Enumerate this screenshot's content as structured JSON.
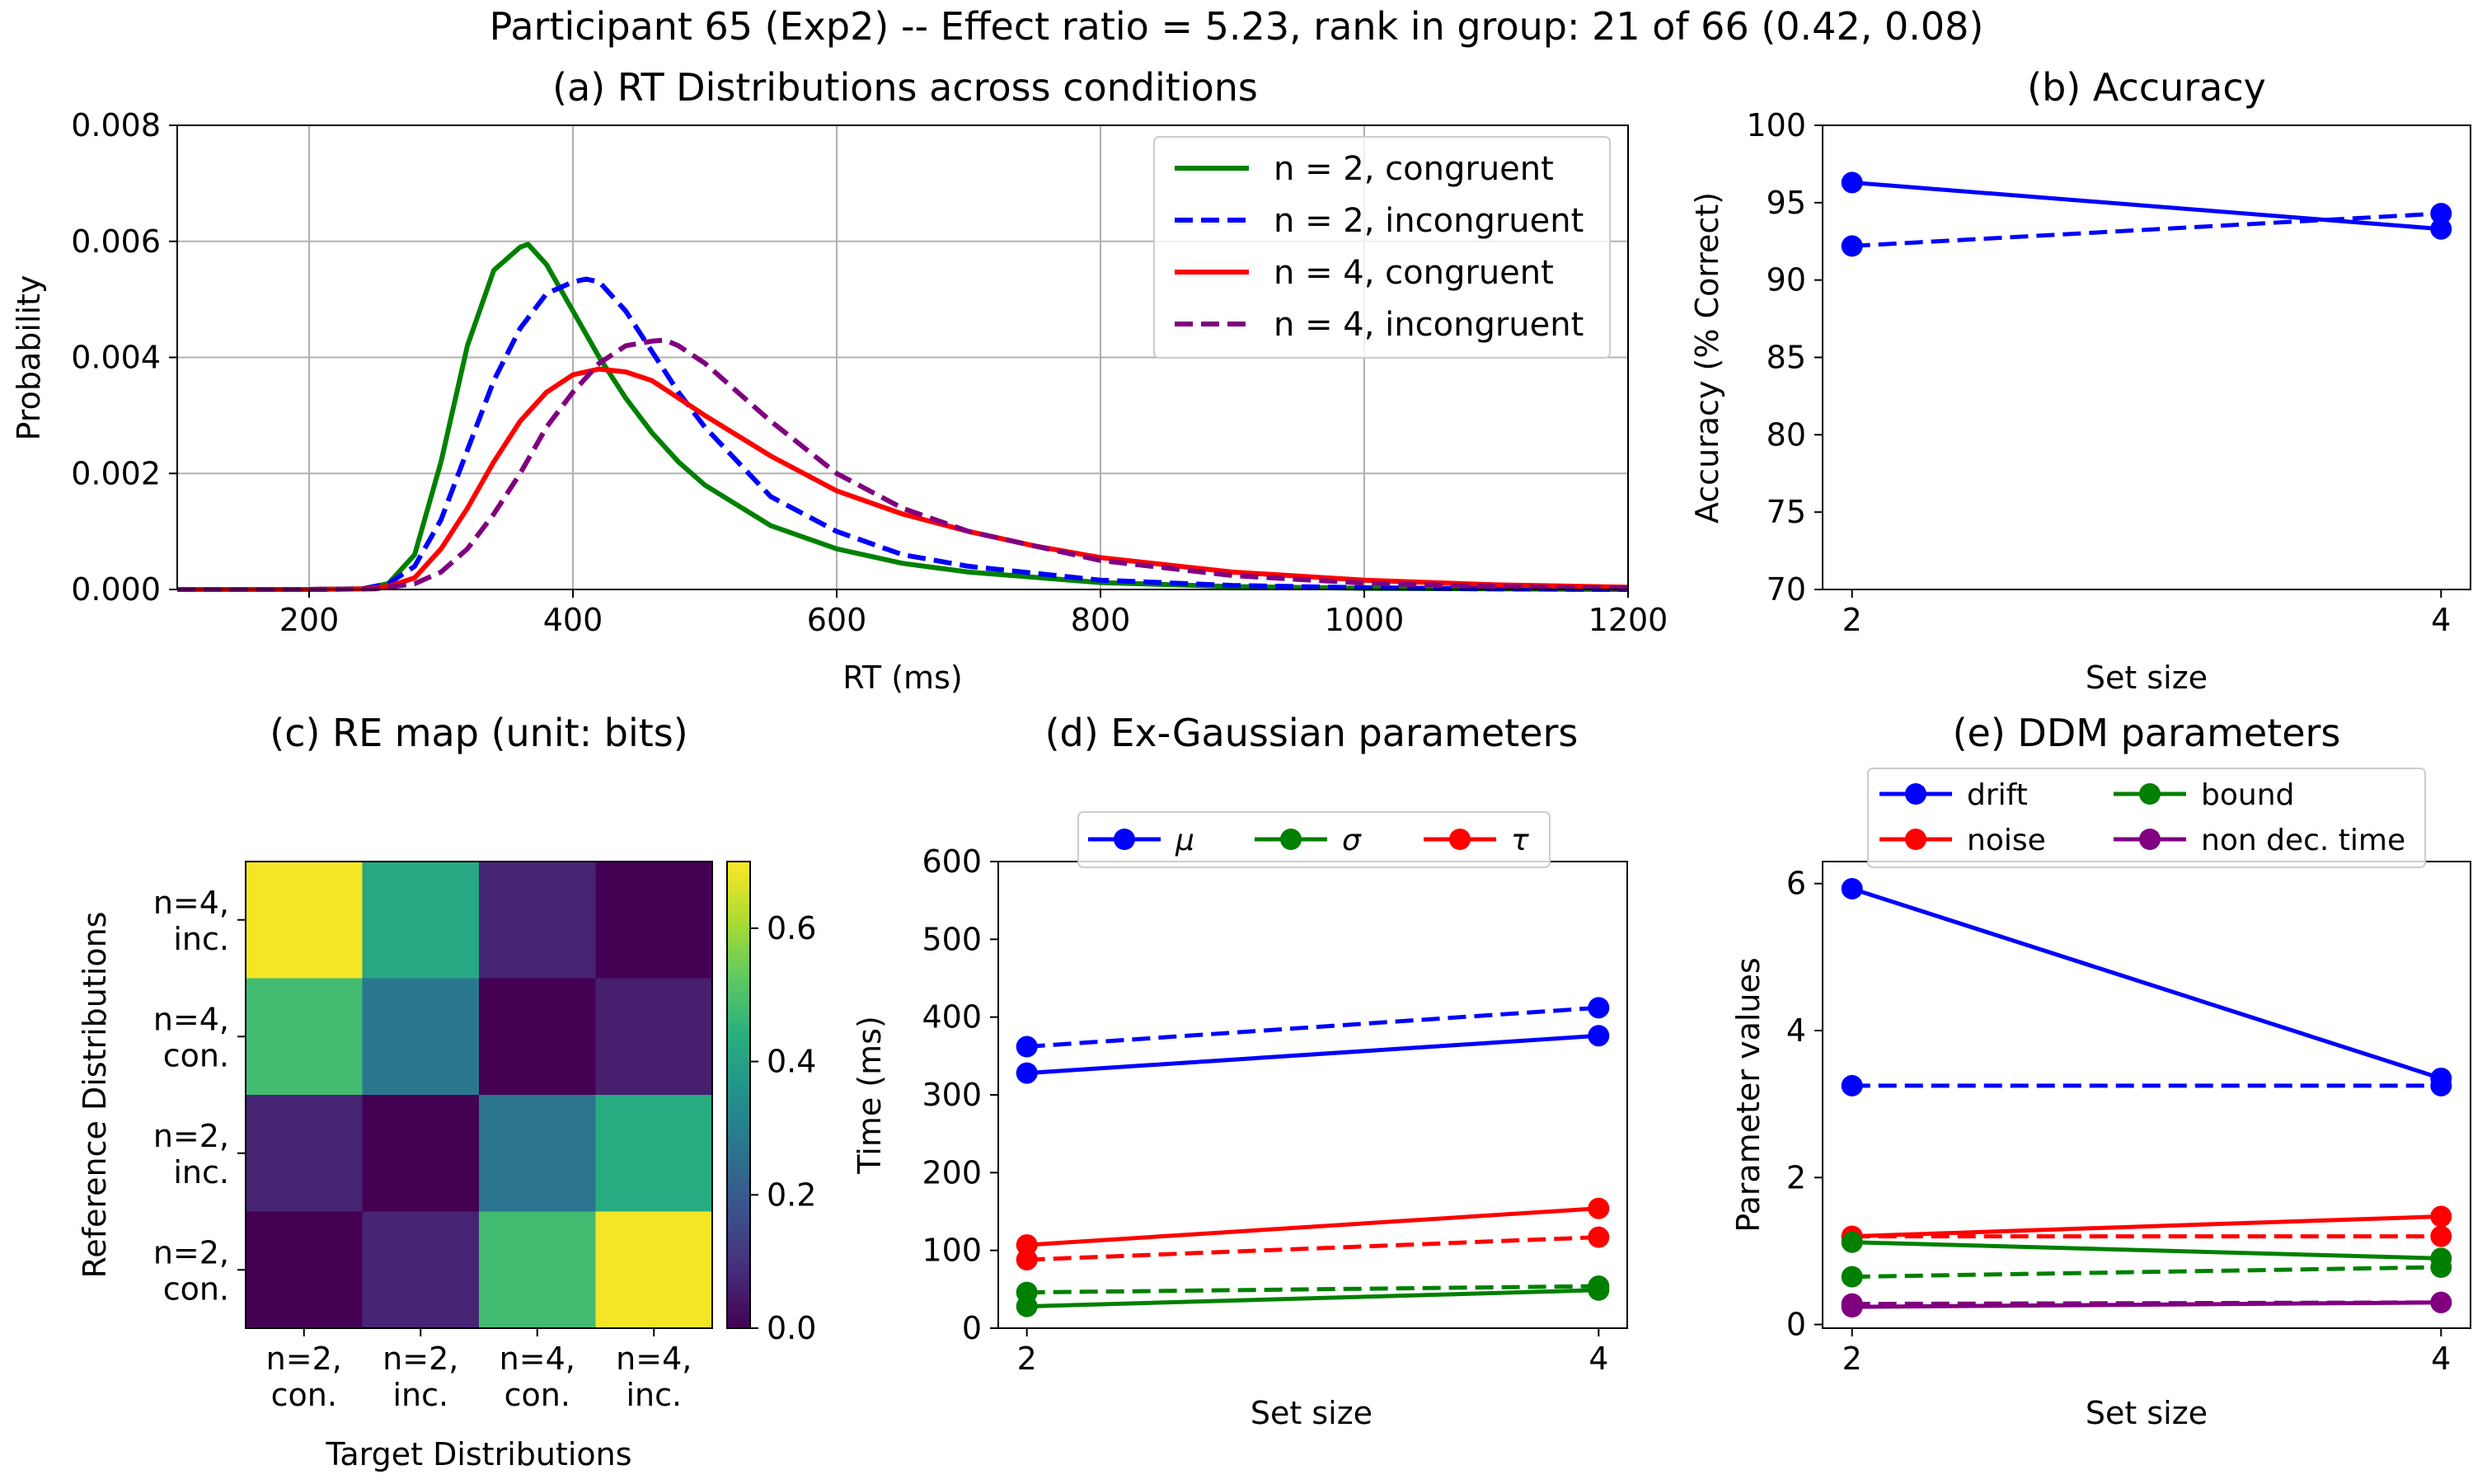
{
  "figure": {
    "suptitle": "Participant 65 (Exp2) -- Effect ratio = 5.23, rank in group: 21 of 66 (0.42, 0.08)"
  },
  "colors": {
    "green": "#008000",
    "blue": "#0000ff",
    "red": "#ff0000",
    "purple": "#800080"
  },
  "chart_data": [
    {
      "id": "a",
      "type": "line",
      "title": "(a) RT Distributions across conditions",
      "xlabel": "RT (ms)",
      "ylabel": "Probability",
      "xlim": [
        100,
        1200
      ],
      "ylim": [
        0,
        0.008
      ],
      "xticks": [
        200,
        400,
        600,
        800,
        1000,
        1200
      ],
      "yticks": [
        "0.000",
        "0.002",
        "0.004",
        "0.006",
        "0.008"
      ],
      "grid": true,
      "legend": "top-right",
      "series": [
        {
          "name": "n = 2, congruent",
          "color": "#008000",
          "dash": "solid",
          "x": [
            100,
            200,
            240,
            260,
            280,
            300,
            320,
            340,
            360,
            366,
            380,
            400,
            420,
            440,
            460,
            480,
            500,
            550,
            600,
            650,
            700,
            800,
            900,
            1000,
            1100,
            1200
          ],
          "y": [
            0,
            0,
            1e-05,
            0.0001,
            0.0006,
            0.0022,
            0.0042,
            0.0055,
            0.0059,
            0.00595,
            0.0056,
            0.0048,
            0.004,
            0.0033,
            0.0027,
            0.0022,
            0.0018,
            0.0011,
            0.0007,
            0.00045,
            0.0003,
            0.00012,
            5e-05,
            2e-05,
            1e-05,
            0
          ]
        },
        {
          "name": "n = 2, incongruent",
          "color": "#0000ff",
          "dash": "dashed",
          "x": [
            100,
            200,
            240,
            260,
            280,
            300,
            320,
            340,
            360,
            380,
            400,
            410,
            420,
            440,
            460,
            480,
            500,
            550,
            600,
            650,
            700,
            800,
            900,
            1000,
            1100,
            1200
          ],
          "y": [
            0,
            0,
            1e-05,
            0.0001,
            0.0004,
            0.0012,
            0.0024,
            0.0036,
            0.0045,
            0.0051,
            0.0053,
            0.00535,
            0.0053,
            0.0048,
            0.0041,
            0.0034,
            0.0028,
            0.0016,
            0.001,
            0.0006,
            0.0004,
            0.00016,
            7e-05,
            3e-05,
            1e-05,
            0
          ]
        },
        {
          "name": "n = 4, congruent",
          "color": "#ff0000",
          "dash": "solid",
          "x": [
            100,
            200,
            240,
            260,
            280,
            300,
            320,
            340,
            360,
            380,
            400,
            420,
            440,
            460,
            480,
            500,
            550,
            600,
            650,
            700,
            750,
            800,
            900,
            1000,
            1100,
            1200
          ],
          "y": [
            0,
            0,
            1e-05,
            5e-05,
            0.0002,
            0.0007,
            0.0014,
            0.0022,
            0.0029,
            0.0034,
            0.0037,
            0.0038,
            0.00375,
            0.0036,
            0.0033,
            0.003,
            0.0023,
            0.0017,
            0.0013,
            0.001,
            0.00075,
            0.00055,
            0.0003,
            0.00016,
            8e-05,
            4e-05
          ]
        },
        {
          "name": "n = 4, incongruent",
          "color": "#800080",
          "dash": "dashed",
          "x": [
            100,
            200,
            250,
            280,
            300,
            320,
            340,
            360,
            380,
            400,
            420,
            440,
            460,
            470,
            480,
            500,
            520,
            550,
            600,
            650,
            700,
            800,
            900,
            1000,
            1100,
            1200
          ],
          "y": [
            0,
            0,
            1e-05,
            0.0001,
            0.0003,
            0.0007,
            0.0013,
            0.002,
            0.0028,
            0.0034,
            0.0039,
            0.0042,
            0.00428,
            0.0043,
            0.0042,
            0.0039,
            0.0035,
            0.0029,
            0.002,
            0.0014,
            0.001,
            0.0005,
            0.00024,
            0.00011,
            5e-05,
            2e-05
          ]
        }
      ]
    },
    {
      "id": "b",
      "type": "line",
      "title": "(b) Accuracy",
      "xlabel": "Set size",
      "ylabel": "Accuracy (% Correct)",
      "xlim": [
        1.9,
        4.1
      ],
      "ylim": [
        70,
        100
      ],
      "xticks": [
        2,
        4
      ],
      "yticks": [
        70,
        75,
        80,
        85,
        90,
        95,
        100
      ],
      "series": [
        {
          "color": "#0000ff",
          "dash": "solid",
          "x": [
            2,
            4
          ],
          "y": [
            96.3,
            93.3
          ]
        },
        {
          "color": "#0000ff",
          "dash": "dashed",
          "x": [
            2,
            4
          ],
          "y": [
            92.2,
            94.3
          ]
        }
      ]
    },
    {
      "id": "c",
      "type": "heatmap",
      "title": "(c) RE map (unit: bits)",
      "xlabel": "Target Distributions",
      "ylabel": "Reference Distributions",
      "xticklabels": [
        [
          "n=2,",
          "con."
        ],
        [
          "n=2,",
          "inc."
        ],
        [
          "n=4,",
          "con."
        ],
        [
          "n=4,",
          "inc."
        ]
      ],
      "yticklabels_top_to_bottom": [
        [
          "n=4,",
          "inc."
        ],
        [
          "n=4,",
          "con."
        ],
        [
          "n=2,",
          "inc."
        ],
        [
          "n=2,",
          "con."
        ]
      ],
      "values_top_to_bottom": [
        [
          0.69,
          0.42,
          0.07,
          0.0
        ],
        [
          0.48,
          0.28,
          0.0,
          0.06
        ],
        [
          0.07,
          0.0,
          0.27,
          0.43
        ],
        [
          0.0,
          0.07,
          0.48,
          0.69
        ]
      ],
      "colorbar": {
        "min": 0.0,
        "max": 0.7,
        "ticks": [
          "0.0",
          "0.2",
          "0.4",
          "0.6"
        ]
      }
    },
    {
      "id": "d",
      "type": "line",
      "title": "(d) Ex-Gaussian parameters",
      "xlabel": "Set size",
      "ylabel": "Time (ms)",
      "xlim": [
        1.9,
        4.1
      ],
      "ylim": [
        0,
        600
      ],
      "xticks": [
        2,
        4
      ],
      "yticks": [
        0,
        100,
        200,
        300,
        400,
        500,
        600
      ],
      "legend": "top-center",
      "legend_entries": [
        {
          "label": "μ",
          "color": "#0000ff"
        },
        {
          "label": "σ",
          "color": "#008000"
        },
        {
          "label": "τ",
          "color": "#ff0000"
        }
      ],
      "series": [
        {
          "color": "#0000ff",
          "dash": "solid",
          "x": [
            2,
            4
          ],
          "y": [
            328,
            376
          ]
        },
        {
          "color": "#0000ff",
          "dash": "dashed",
          "x": [
            2,
            4
          ],
          "y": [
            362,
            412
          ]
        },
        {
          "color": "#ff0000",
          "dash": "solid",
          "x": [
            2,
            4
          ],
          "y": [
            107,
            154
          ]
        },
        {
          "color": "#ff0000",
          "dash": "dashed",
          "x": [
            2,
            4
          ],
          "y": [
            88,
            117
          ]
        },
        {
          "color": "#008000",
          "dash": "solid",
          "x": [
            2,
            4
          ],
          "y": [
            28,
            49
          ]
        },
        {
          "color": "#008000",
          "dash": "dashed",
          "x": [
            2,
            4
          ],
          "y": [
            46,
            54
          ]
        }
      ]
    },
    {
      "id": "e",
      "type": "line",
      "title": "(e) DDM parameters",
      "xlabel": "Set size",
      "ylabel": "Parameter values",
      "xlim": [
        1.9,
        4.1
      ],
      "ylim": [
        -0.05,
        6.3
      ],
      "xticks": [
        2,
        4
      ],
      "yticks": [
        0,
        2,
        4,
        6
      ],
      "legend": "top",
      "legend_entries": [
        {
          "label": "drift",
          "color": "#0000ff"
        },
        {
          "label": "bound",
          "color": "#008000"
        },
        {
          "label": "noise",
          "color": "#ff0000"
        },
        {
          "label": "non dec. time",
          "color": "#800080"
        }
      ],
      "series": [
        {
          "color": "#0000ff",
          "dash": "solid",
          "x": [
            2,
            4
          ],
          "y": [
            5.93,
            3.35
          ]
        },
        {
          "color": "#0000ff",
          "dash": "dashed",
          "x": [
            2,
            4
          ],
          "y": [
            3.25,
            3.25
          ]
        },
        {
          "color": "#ff0000",
          "dash": "solid",
          "x": [
            2,
            4
          ],
          "y": [
            1.2,
            1.47
          ]
        },
        {
          "color": "#ff0000",
          "dash": "dashed",
          "x": [
            2,
            4
          ],
          "y": [
            1.2,
            1.2
          ]
        },
        {
          "color": "#008000",
          "dash": "solid",
          "x": [
            2,
            4
          ],
          "y": [
            1.12,
            0.9
          ]
        },
        {
          "color": "#008000",
          "dash": "dashed",
          "x": [
            2,
            4
          ],
          "y": [
            0.65,
            0.78
          ]
        },
        {
          "color": "#800080",
          "dash": "solid",
          "x": [
            2,
            4
          ],
          "y": [
            0.24,
            0.3
          ]
        },
        {
          "color": "#800080",
          "dash": "dashed",
          "x": [
            2,
            4
          ],
          "y": [
            0.28,
            0.3
          ]
        }
      ]
    }
  ]
}
